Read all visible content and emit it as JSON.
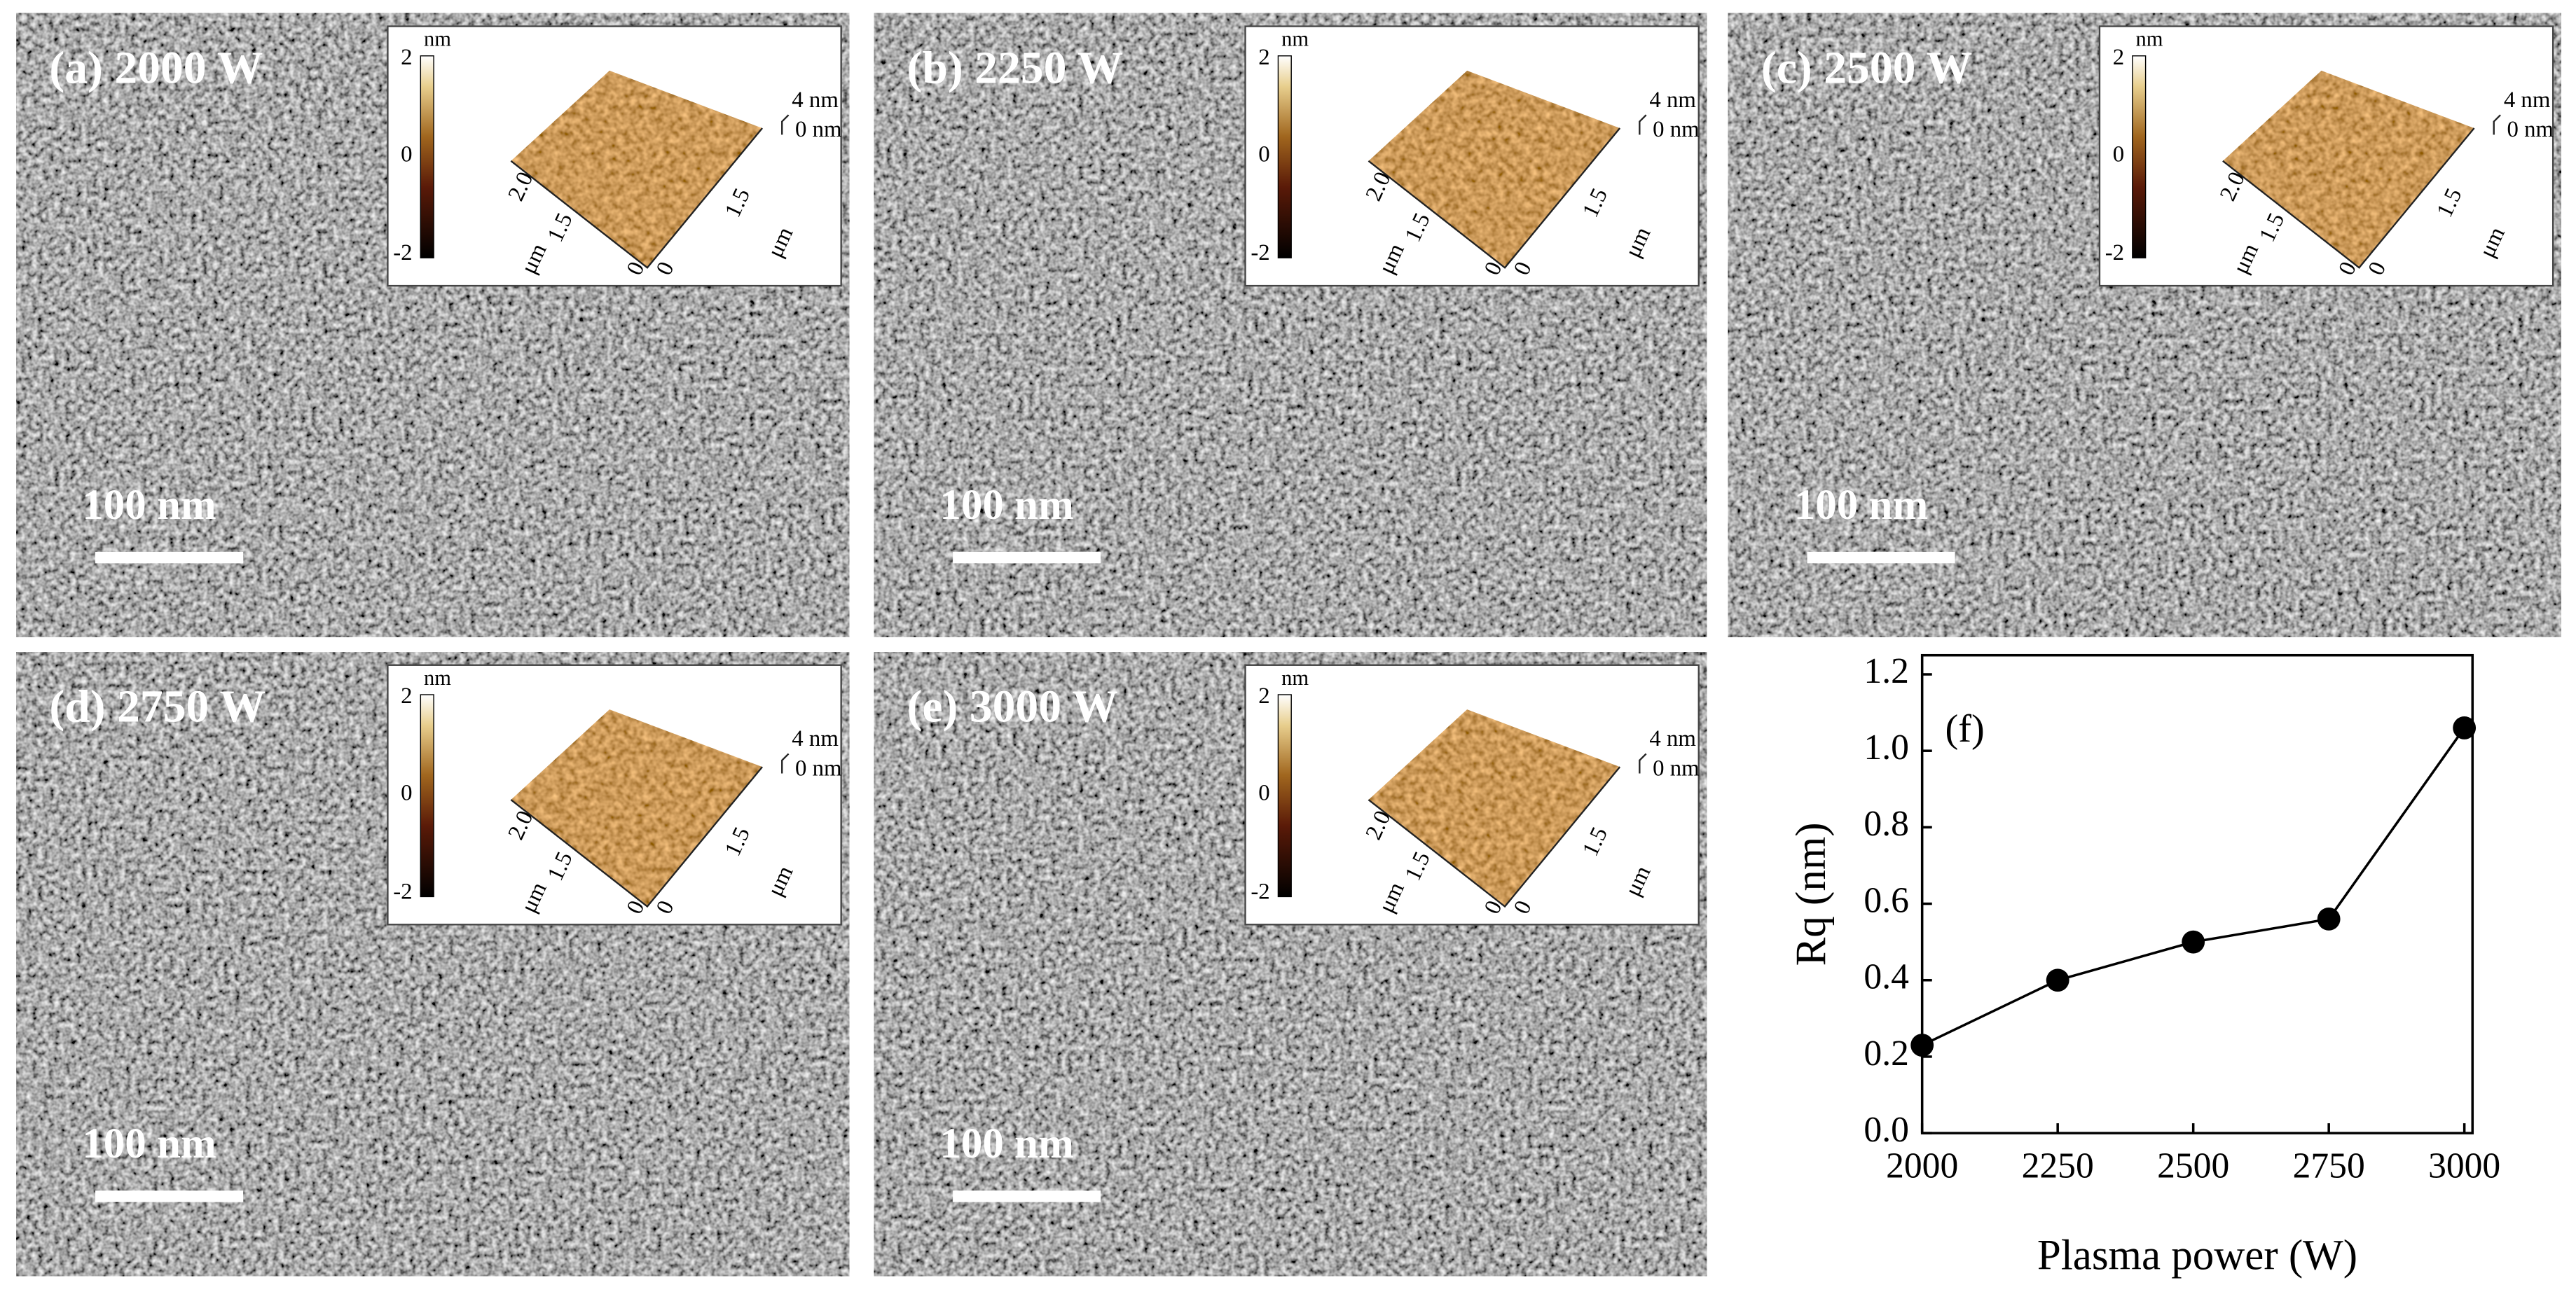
{
  "panels": [
    {
      "label": "(a) 2000 W",
      "scale_bar": "100 nm",
      "inset": {
        "colorbar_unit": "nm",
        "colorbar_ticks": [
          "2",
          "0",
          "-2"
        ],
        "z_ticks": [
          "4 nm",
          "0 nm"
        ],
        "left_axis_ticks": [
          "2.0",
          "1.5",
          "0"
        ],
        "right_axis_ticks": [
          "0",
          "1.5"
        ],
        "axis_units": [
          "μm",
          "μm"
        ]
      }
    },
    {
      "label": "(b) 2250 W",
      "scale_bar": "100 nm",
      "inset": {
        "colorbar_unit": "nm",
        "colorbar_ticks": [
          "2",
          "0",
          "-2"
        ],
        "z_ticks": [
          "4 nm",
          "0 nm"
        ],
        "left_axis_ticks": [
          "2.0",
          "1.5",
          "0"
        ],
        "right_axis_ticks": [
          "0",
          "1.5"
        ],
        "axis_units": [
          "μm",
          "μm"
        ]
      }
    },
    {
      "label": "(c) 2500 W",
      "scale_bar": "100 nm",
      "inset": {
        "colorbar_unit": "nm",
        "colorbar_ticks": [
          "2",
          "0",
          "-2"
        ],
        "z_ticks": [
          "4 nm",
          "0 nm"
        ],
        "left_axis_ticks": [
          "2.0",
          "1.5",
          "0"
        ],
        "right_axis_ticks": [
          "0",
          "1.5"
        ],
        "axis_units": [
          "μm",
          "μm"
        ]
      }
    },
    {
      "label": "(d) 2750 W",
      "scale_bar": "100 nm",
      "inset": {
        "colorbar_unit": "nm",
        "colorbar_ticks": [
          "2",
          "0",
          "-2"
        ],
        "z_ticks": [
          "4 nm",
          "0 nm"
        ],
        "left_axis_ticks": [
          "2.0",
          "1.5",
          "0"
        ],
        "right_axis_ticks": [
          "0",
          "1.5"
        ],
        "axis_units": [
          "μm",
          "μm"
        ]
      }
    },
    {
      "label": "(e) 3000 W",
      "scale_bar": "100 nm",
      "inset": {
        "colorbar_unit": "nm",
        "colorbar_ticks": [
          "2",
          "0",
          "-2"
        ],
        "z_ticks": [
          "4 nm",
          "0 nm"
        ],
        "left_axis_ticks": [
          "2.0",
          "1.5",
          "0"
        ],
        "right_axis_ticks": [
          "0",
          "1.5"
        ],
        "axis_units": [
          "μm",
          "μm"
        ]
      }
    }
  ],
  "chart_data": {
    "type": "line",
    "annotation": "(f)",
    "x_label": "Plasma power (W)",
    "y_label": "Rq (nm)",
    "x": [
      2000,
      2250,
      2500,
      2750,
      3000
    ],
    "values": [
      0.23,
      0.4,
      0.5,
      0.56,
      1.06
    ],
    "color": "#000000",
    "xlim": [
      2000,
      3015
    ],
    "xticks": [
      2000,
      2250,
      2500,
      2750,
      3000
    ],
    "ylim": [
      0,
      1.25
    ],
    "yticks": [
      {
        "value": 0,
        "label": "0.0"
      },
      0.2,
      0.4,
      0.6,
      0.8,
      {
        "value": 1,
        "label": "1.0"
      },
      1.2
    ]
  }
}
